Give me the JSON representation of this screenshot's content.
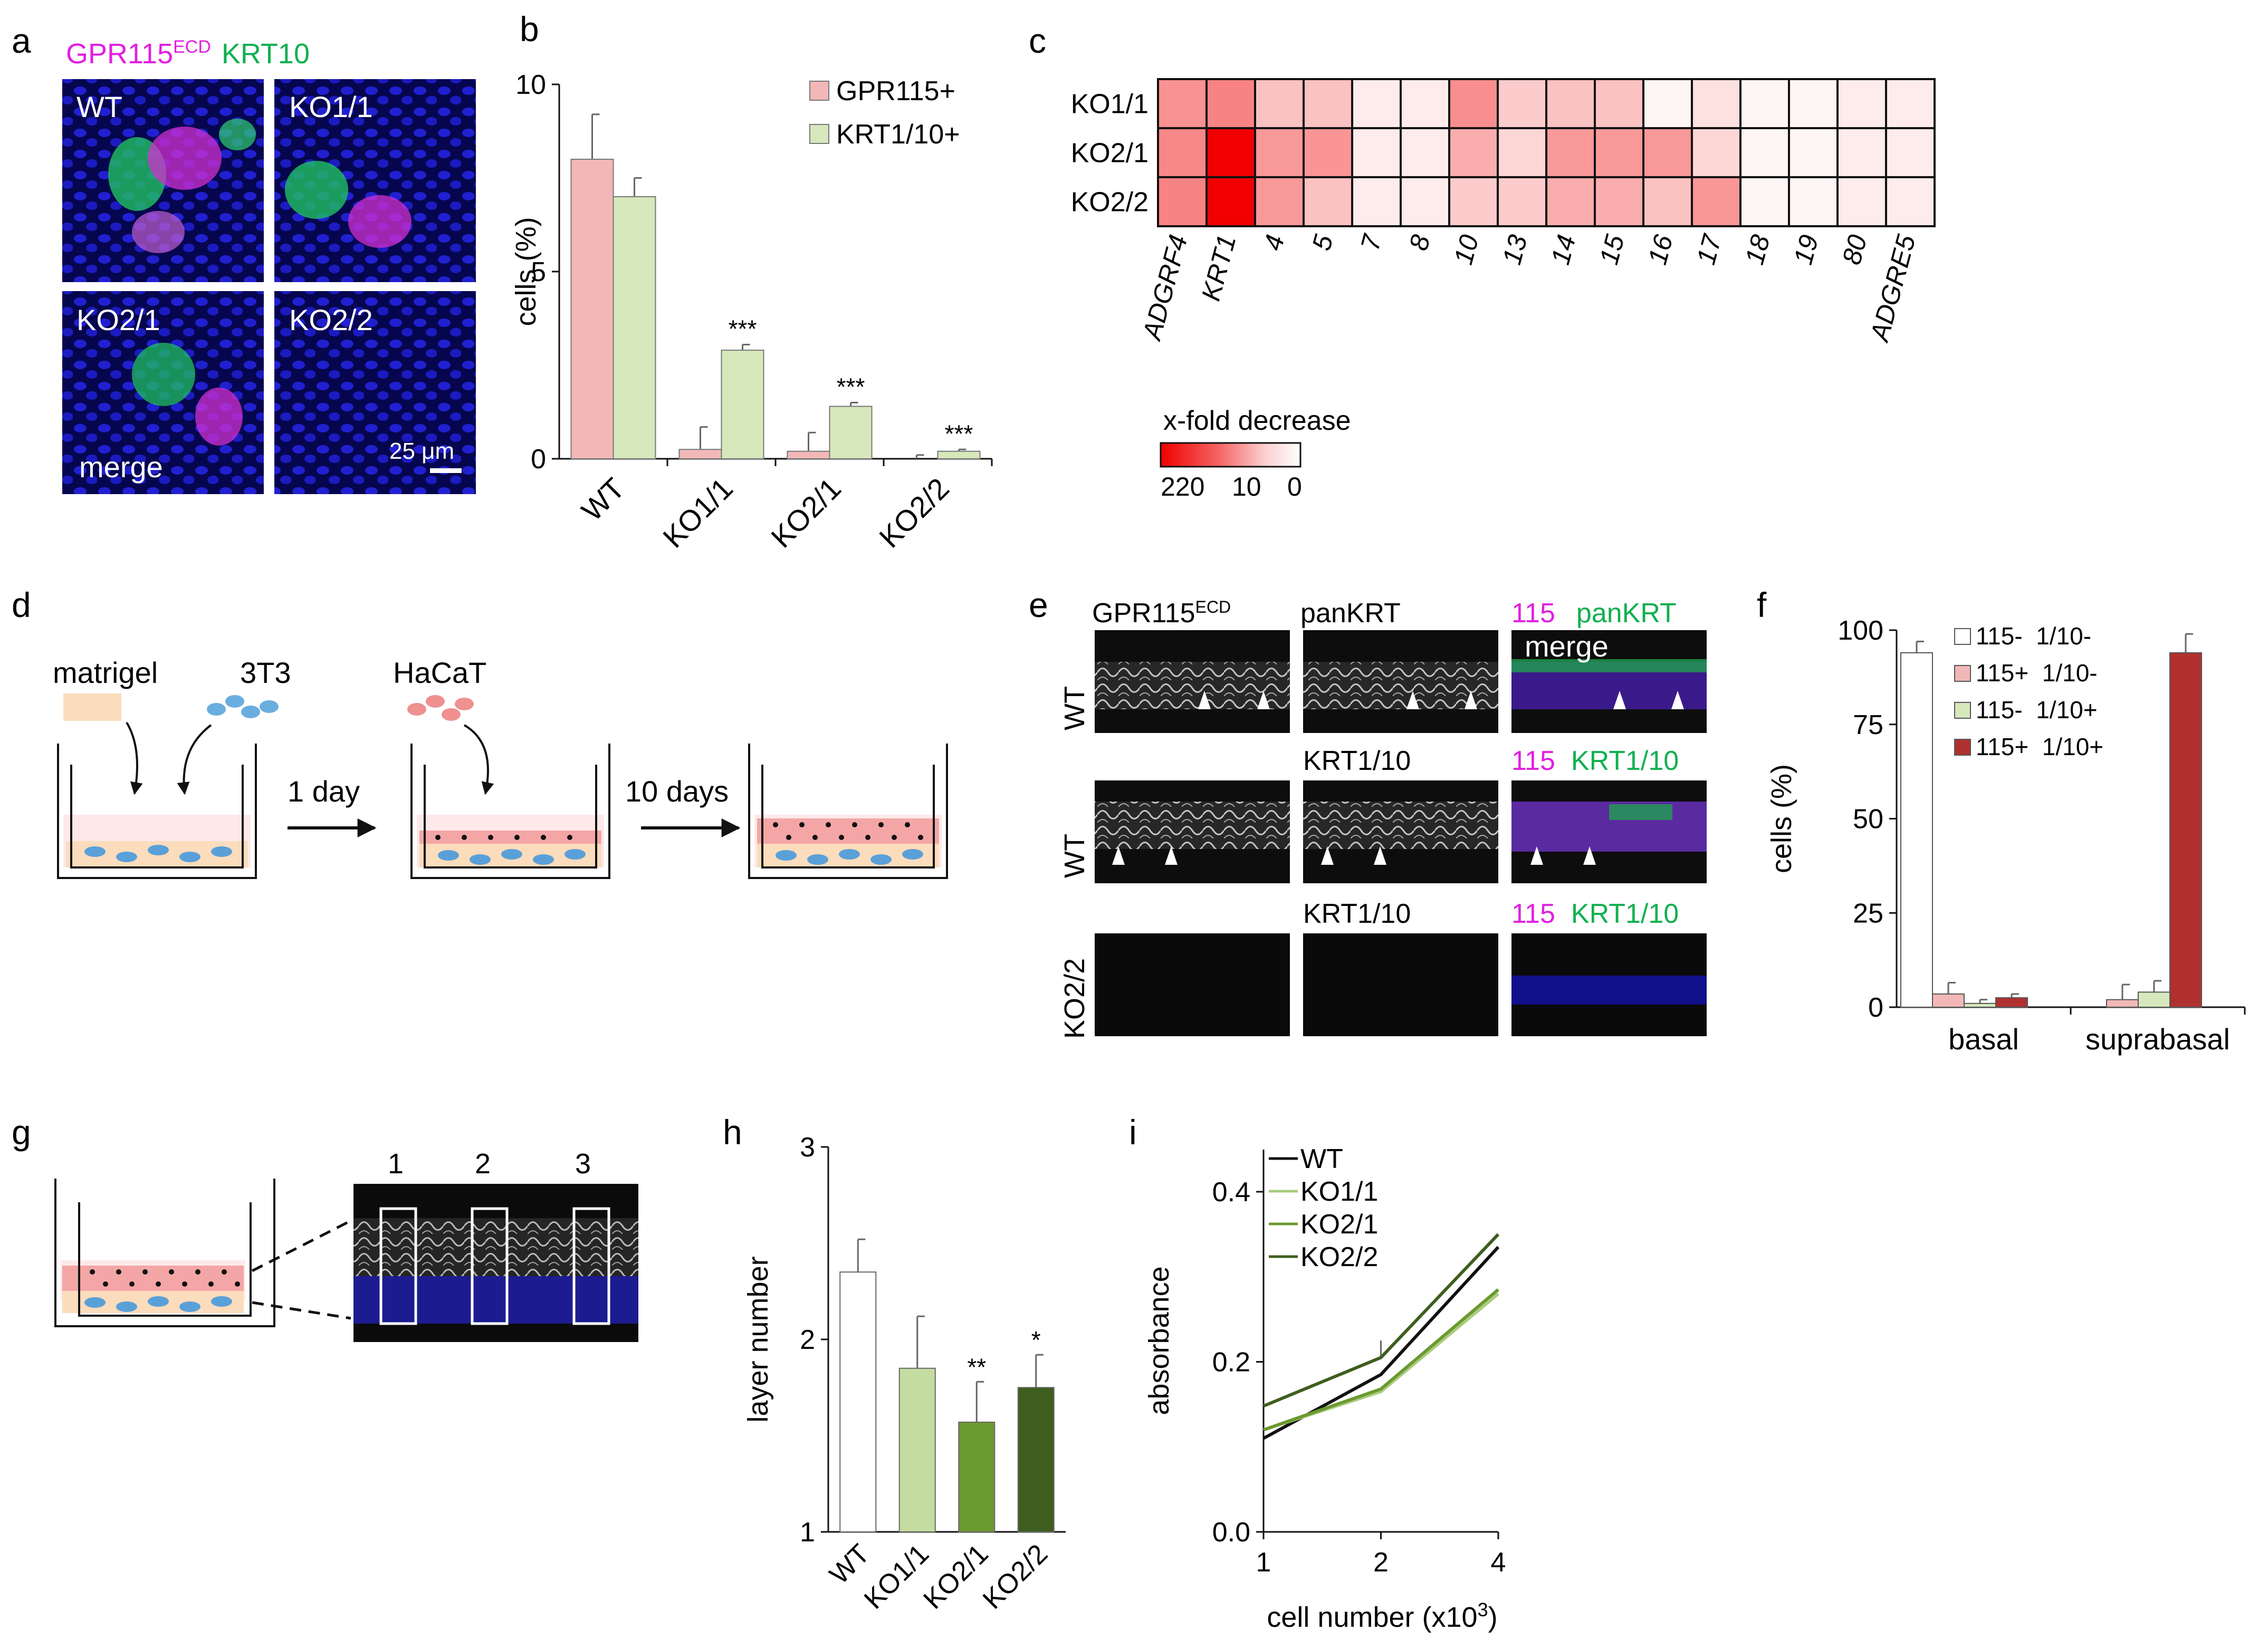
{
  "panel_labels": [
    "a",
    "b",
    "c",
    "d",
    "e",
    "f",
    "g",
    "h",
    "i"
  ],
  "panel_a": {
    "title_magenta": "GPR115",
    "title_magenta_sup": "ECD",
    "title_green": "KRT10",
    "tiles": [
      "WT",
      "KO1/1",
      "KO2/1",
      "KO2/2"
    ],
    "merge_label": "merge",
    "scale_label": "25 μm",
    "colors": {
      "magenta": "#e020e0",
      "green": "#10b050",
      "nuclei": "#1a1ac8"
    }
  },
  "panel_d": {
    "labels": {
      "matrigel": "matrigel",
      "t3t3": "3T3",
      "hacat": "HaCaT"
    },
    "arrows": [
      "1 day",
      "10 days"
    ]
  },
  "panel_e": {
    "col_headers": {
      "gpr": "GPR115",
      "gpr_sup": "ECD",
      "pankrt": "panKRT",
      "c115": "115",
      "pankrt_green": "panKRT"
    },
    "row2_headers": {
      "krt": "KRT1/10",
      "c115": "115",
      "krt_green": "KRT1/10"
    },
    "row3_headers": {
      "krt": "KRT1/10",
      "c115": "115",
      "krt_green": "KRT1/10"
    },
    "rows": [
      "WT",
      "WT",
      "KO2/2"
    ],
    "merge_label": "merge"
  },
  "panel_g": {
    "boxes": [
      "1",
      "2",
      "3"
    ]
  },
  "heatmap": {
    "legend_title": "x-fold decrease",
    "legend_ticks": [
      "220",
      "10",
      "0"
    ]
  },
  "chart_data": [
    {
      "panel": "b",
      "type": "bar",
      "ylabel": "cells (%)",
      "ylim": [
        0,
        10
      ],
      "yticks": [
        0,
        5,
        10
      ],
      "categories": [
        "WT",
        "KO1/1",
        "KO2/1",
        "KO2/2"
      ],
      "series": [
        {
          "name": "GPR115+",
          "color": "#f2b8b8",
          "values": [
            8.0,
            0.25,
            0.2,
            0.0
          ],
          "errors": [
            1.2,
            0.6,
            0.5,
            0.1
          ]
        },
        {
          "name": "KRT1/10+",
          "color": "#d6e8bc",
          "values": [
            7.0,
            2.9,
            1.4,
            0.2
          ],
          "errors": [
            0.5,
            0.15,
            0.1,
            0.05
          ]
        }
      ],
      "annotations": [
        "",
        "***",
        "***",
        "***"
      ],
      "legend": "top-right"
    },
    {
      "panel": "c",
      "type": "heatmap",
      "rows": [
        "KO1/1",
        "KO2/1",
        "KO2/2"
      ],
      "columns": [
        "ADGRF4",
        "KRT1",
        "4",
        "5",
        "7",
        "8",
        "10",
        "13",
        "14",
        "15",
        "16",
        "17",
        "18",
        "19",
        "80",
        "ADGRE5"
      ],
      "values": [
        [
          20,
          40,
          6,
          6,
          2,
          2,
          25,
          5,
          6,
          6,
          1,
          3,
          1,
          1,
          2,
          2
        ],
        [
          35,
          220,
          12,
          15,
          2,
          2,
          8,
          4,
          10,
          10,
          12,
          4,
          1,
          1,
          2,
          2
        ],
        [
          40,
          220,
          12,
          6,
          2,
          2,
          5,
          5,
          8,
          8,
          6,
          14,
          1,
          1,
          2,
          2
        ]
      ],
      "colorscale": {
        "min": 0,
        "mid": 10,
        "max": 220,
        "low_color": "#ffffff",
        "high_color": "#f00000"
      }
    },
    {
      "panel": "f",
      "type": "bar",
      "ylabel": "cells (%)",
      "ylim": [
        0,
        100
      ],
      "yticks": [
        0,
        25,
        50,
        75,
        100
      ],
      "categories": [
        "basal",
        "suprabasal"
      ],
      "series": [
        {
          "name": "115-  1/10-",
          "color": "#ffffff",
          "values": [
            94,
            0
          ],
          "errors": [
            3,
            0
          ]
        },
        {
          "name": "115+  1/10-",
          "color": "#f2b8b8",
          "values": [
            3.5,
            2
          ],
          "errors": [
            3,
            4
          ]
        },
        {
          "name": "115-  1/10+",
          "color": "#d6e8bc",
          "values": [
            1,
            4
          ],
          "errors": [
            1,
            3
          ]
        },
        {
          "name": "115+  1/10+",
          "color": "#b03030",
          "values": [
            2.5,
            94
          ],
          "errors": [
            1,
            5
          ]
        }
      ],
      "legend": "top-right"
    },
    {
      "panel": "h",
      "type": "bar",
      "ylabel": "layer number",
      "ylim": [
        1,
        3
      ],
      "yticks": [
        1,
        2,
        3
      ],
      "categories": [
        "WT",
        "KO1/1",
        "KO2/1",
        "KO2/2"
      ],
      "values": [
        2.35,
        1.85,
        1.57,
        1.75
      ],
      "errors": [
        0.17,
        0.27,
        0.21,
        0.17
      ],
      "colors": [
        "#ffffff",
        "#c5dca0",
        "#6b9a2e",
        "#3e5e1e"
      ],
      "annotations": [
        "",
        "",
        "**",
        "*"
      ]
    },
    {
      "panel": "i",
      "type": "line",
      "xlabel": "cell number (x10",
      "xlabel_sup": "3",
      "xlabel_end": ")",
      "ylabel": "absorbance",
      "ylim": [
        0.0,
        0.4
      ],
      "yticks": [
        "0.0",
        "0.2",
        "0.4"
      ],
      "x": [
        1,
        2,
        4
      ],
      "xticks": [
        "1",
        "2",
        "4"
      ],
      "series": [
        {
          "name": "WT",
          "color": "#111111",
          "values": [
            0.11,
            0.185,
            0.335
          ]
        },
        {
          "name": "KO1/1",
          "color": "#a8cc80",
          "values": [
            0.12,
            0.165,
            0.28
          ]
        },
        {
          "name": "KO2/1",
          "color": "#6b9a2e",
          "values": [
            0.12,
            0.168,
            0.285
          ]
        },
        {
          "name": "KO2/2",
          "color": "#3e5e1e",
          "values": [
            0.148,
            0.205,
            0.35
          ]
        }
      ],
      "legend": "top-left"
    }
  ]
}
